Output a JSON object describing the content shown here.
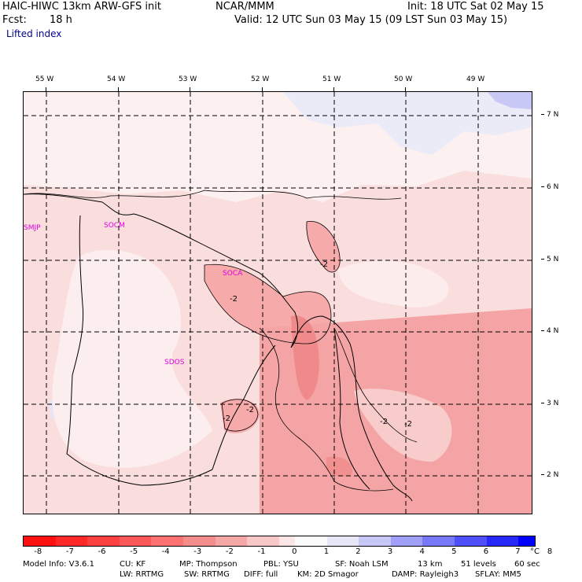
{
  "header": {
    "title_left": "HAIC-HIWC 13km ARW-GFS init",
    "title_center": "NCAR/MMM",
    "init": "Init: 18 UTC Sat 02 May 15",
    "fcst_label": "Fcst:",
    "fcst_value": "18 h",
    "valid": "Valid: 12 UTC Sun 03 May 15 (09 LST Sun 03 May 15)",
    "field": "Lifted index"
  },
  "longitude_labels": [
    "55 W",
    "54 W",
    "53 W",
    "52 W",
    "51 W",
    "50 W",
    "49 W"
  ],
  "latitude_labels": [
    "7 N",
    "6 N",
    "5 N",
    "4 N",
    "3 N",
    "2 N"
  ],
  "station_labels": [
    "SMJP",
    "SOCM",
    "SOCA",
    "SDOS"
  ],
  "contour_labels": [
    "-2",
    "-2",
    "-2",
    "-2",
    "-2",
    "-2"
  ],
  "legend": {
    "values": [
      "-8",
      "-7",
      "-6",
      "-5",
      "-4",
      "-3",
      "-2",
      "-1",
      "0",
      "1",
      "2",
      "3",
      "4",
      "5",
      "6",
      "7",
      "8"
    ],
    "unit": "°C",
    "colors": [
      "#ff1010",
      "#ff2828",
      "#ff4040",
      "#ff5858",
      "#ff7272",
      "#f68c8c",
      "#f5a6a6",
      "#f8c8c8",
      "#fce6e6",
      "#fbfbfb",
      "#e6e6f6",
      "#c8c8f8",
      "#a0a0fa",
      "#7878fa",
      "#5050fa",
      "#2828fb",
      "#0000ff"
    ]
  },
  "footer": {
    "line1": [
      "Model Info: V3.6.1",
      "CU: KF",
      "MP: Thompson",
      "PBL: YSU",
      "SF: Noah LSM",
      "13 km",
      "51 levels",
      "60 sec"
    ],
    "line2": [
      "LW: RRTMG",
      "SW: RRTMG",
      "DIFF: full",
      "KM: 2D Smagor",
      "DAMP: Rayleigh3",
      "SFLAY: MM5"
    ]
  }
}
